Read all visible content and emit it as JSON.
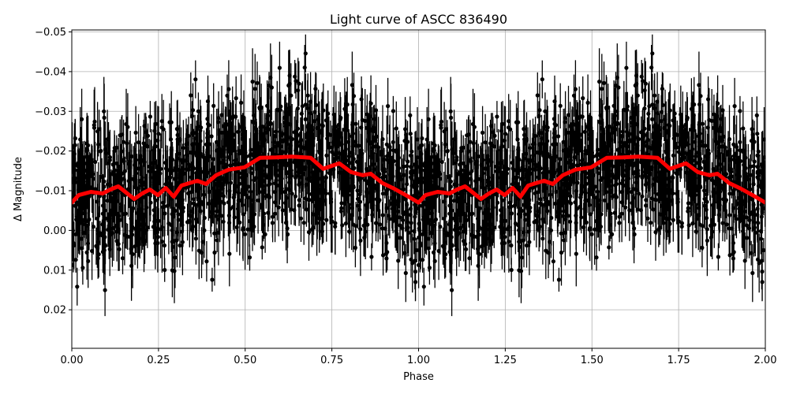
{
  "chart_data": {
    "type": "scatter",
    "title": "Light curve of ASCC 836490",
    "xlabel": "Phase",
    "ylabel": "Δ Magnitude",
    "xlim": [
      0.0,
      2.0
    ],
    "ylim": [
      0.0297,
      -0.0505
    ],
    "y_inverted": true,
    "grid": true,
    "legend": null,
    "x_ticks": [
      0.0,
      0.25,
      0.5,
      0.75,
      1.0,
      1.25,
      1.5,
      1.75,
      2.0
    ],
    "x_tick_labels": [
      "0.00",
      "0.25",
      "0.50",
      "0.75",
      "1.00",
      "1.25",
      "1.50",
      "1.75",
      "2.00"
    ],
    "y_ticks": [
      -0.05,
      -0.04,
      -0.03,
      -0.02,
      -0.01,
      0.0,
      0.01,
      0.02
    ],
    "y_tick_labels": [
      "−0.05",
      "−0.04",
      "−0.03",
      "−0.02",
      "−0.01",
      "0.00",
      "0.01",
      "0.02"
    ],
    "series": [
      {
        "name": "observations",
        "kind": "errorbar-scatter",
        "color": "#000000",
        "description": "Dense phase-folded photometry with error bars, scatter roughly ±0.02 mag around binned curve; points repeated for phase 1-2",
        "approx_center_mag": -0.013,
        "approx_spread_mag": 0.02
      },
      {
        "name": "binned",
        "kind": "line",
        "color": "#ff0000",
        "x": [
          0.0,
          0.02,
          0.055,
          0.089,
          0.111,
          0.134,
          0.157,
          0.18,
          0.203,
          0.225,
          0.248,
          0.271,
          0.294,
          0.316,
          0.339,
          0.362,
          0.387,
          0.416,
          0.452,
          0.498,
          0.543,
          0.589,
          0.634,
          0.689,
          0.725,
          0.771,
          0.805,
          0.839,
          0.862,
          0.896,
          0.93,
          0.975,
          1.0
        ],
        "y": [
          -0.007,
          -0.0089,
          -0.0097,
          -0.0093,
          -0.0103,
          -0.0111,
          -0.0095,
          -0.0079,
          -0.0093,
          -0.0103,
          -0.0089,
          -0.0107,
          -0.0085,
          -0.0113,
          -0.0119,
          -0.0125,
          -0.0117,
          -0.0139,
          -0.0153,
          -0.0159,
          -0.0183,
          -0.0184,
          -0.0186,
          -0.0183,
          -0.0155,
          -0.0169,
          -0.0147,
          -0.0139,
          -0.0143,
          -0.0119,
          -0.0105,
          -0.0083,
          -0.007
        ]
      }
    ]
  }
}
